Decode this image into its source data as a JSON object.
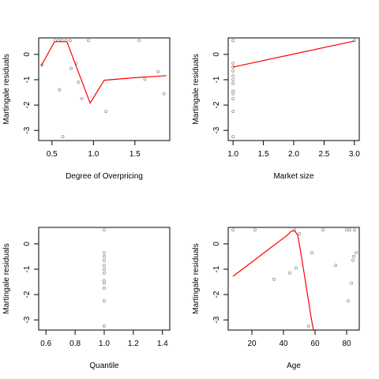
{
  "colors": {
    "points": "#999999",
    "curve": "#ff0000",
    "frame": "#000000"
  },
  "chart_data": [
    {
      "type": "scatter",
      "title": "",
      "xlabel": "Degree of Overpricing",
      "ylabel": "Martingale residuals",
      "xlim": [
        0.34,
        1.92
      ],
      "ylim": [
        -3.4,
        0.65
      ],
      "xticks": [
        0.5,
        1.0,
        1.5
      ],
      "xtick_labels": [
        "0.5",
        "1.0",
        "1.5"
      ],
      "yticks": [
        0,
        -1,
        -2,
        -3
      ],
      "ytick_labels": [
        "0",
        "-1",
        "-2",
        "-3"
      ],
      "points": [
        [
          0.38,
          -0.42
        ],
        [
          0.54,
          0.55
        ],
        [
          0.58,
          0.55
        ],
        [
          0.62,
          0.55
        ],
        [
          0.67,
          0.55
        ],
        [
          0.72,
          0.55
        ],
        [
          0.59,
          -1.4
        ],
        [
          0.63,
          -3.25
        ],
        [
          0.73,
          -0.55
        ],
        [
          0.79,
          -0.35
        ],
        [
          0.82,
          -1.1
        ],
        [
          0.86,
          -1.75
        ],
        [
          0.94,
          0.55
        ],
        [
          1.15,
          -2.25
        ],
        [
          1.55,
          0.55
        ],
        [
          1.62,
          -0.98
        ],
        [
          1.78,
          -0.68
        ],
        [
          1.85,
          -1.55
        ]
      ],
      "line": [
        [
          0.37,
          -0.45
        ],
        [
          0.53,
          0.5
        ],
        [
          0.68,
          0.5
        ],
        [
          0.96,
          -1.92
        ],
        [
          1.13,
          -1.02
        ],
        [
          1.5,
          -0.92
        ],
        [
          1.88,
          -0.84
        ]
      ],
      "grid": false,
      "legend": "none"
    },
    {
      "type": "scatter",
      "title": "",
      "xlabel": "Market size",
      "ylabel": "Martingale residuals",
      "xlim": [
        0.92,
        3.08
      ],
      "ylim": [
        -3.4,
        0.65
      ],
      "xticks": [
        1.0,
        1.5,
        2.0,
        2.5,
        3.0
      ],
      "xtick_labels": [
        "1.0",
        "1.5",
        "2.0",
        "2.5",
        "3.0"
      ],
      "yticks": [
        0,
        -1,
        -2,
        -3
      ],
      "ytick_labels": [
        "0",
        "-1",
        "-2",
        "-3"
      ],
      "points": [
        [
          1.0,
          0.55
        ],
        [
          1.0,
          -0.35
        ],
        [
          1.0,
          -0.5
        ],
        [
          1.0,
          -0.65
        ],
        [
          1.0,
          -0.85
        ],
        [
          1.0,
          -1.0
        ],
        [
          1.0,
          -1.15
        ],
        [
          1.0,
          -1.45
        ],
        [
          1.0,
          -1.55
        ],
        [
          1.0,
          -1.75
        ],
        [
          1.0,
          -2.25
        ],
        [
          1.0,
          -3.25
        ],
        [
          3.0,
          0.55
        ]
      ],
      "line": [
        [
          1.0,
          -0.5
        ],
        [
          3.0,
          0.53
        ]
      ],
      "grid": false,
      "legend": "none"
    },
    {
      "type": "scatter",
      "title": "",
      "xlabel": "Quantile",
      "ylabel": "Martingale residuals",
      "xlim": [
        0.55,
        1.45
      ],
      "ylim": [
        -3.4,
        0.65
      ],
      "xticks": [
        0.6,
        0.8,
        1.0,
        1.2,
        1.4
      ],
      "xtick_labels": [
        "0.6",
        "0.8",
        "1.0",
        "1.2",
        "1.4"
      ],
      "yticks": [
        0,
        -1,
        -2,
        -3
      ],
      "ytick_labels": [
        "0",
        "-1",
        "-2",
        "-3"
      ],
      "points": [
        [
          1.0,
          0.55
        ],
        [
          1.0,
          -0.35
        ],
        [
          1.0,
          -0.5
        ],
        [
          1.0,
          -0.65
        ],
        [
          1.0,
          -0.85
        ],
        [
          1.0,
          -1.0
        ],
        [
          1.0,
          -1.15
        ],
        [
          1.0,
          -1.45
        ],
        [
          1.0,
          -1.55
        ],
        [
          1.0,
          -1.75
        ],
        [
          1.0,
          -2.25
        ],
        [
          1.0,
          -3.25
        ]
      ],
      "line": [],
      "grid": false,
      "legend": "none"
    },
    {
      "type": "scatter",
      "title": "",
      "xlabel": "Age",
      "ylabel": "Martingale residuals",
      "xlim": [
        5,
        88
      ],
      "ylim": [
        -3.4,
        0.65
      ],
      "xticks": [
        20,
        40,
        60,
        80
      ],
      "xtick_labels": [
        "20",
        "40",
        "60",
        "80"
      ],
      "yticks": [
        0,
        -1,
        -2,
        -3
      ],
      "ytick_labels": [
        "0",
        "-1",
        "-2",
        "-3"
      ],
      "points": [
        [
          8,
          0.55
        ],
        [
          22,
          0.55
        ],
        [
          34,
          -1.4
        ],
        [
          44,
          -1.15
        ],
        [
          47,
          0.55
        ],
        [
          48,
          -0.95
        ],
        [
          50,
          0.4
        ],
        [
          56,
          -3.25
        ],
        [
          58,
          -0.35
        ],
        [
          65,
          0.55
        ],
        [
          73,
          -0.85
        ],
        [
          80,
          0.55
        ],
        [
          81,
          -2.25
        ],
        [
          82,
          0.55
        ],
        [
          83,
          -1.55
        ],
        [
          84,
          -0.65
        ],
        [
          85,
          0.55
        ],
        [
          86,
          -0.35
        ],
        [
          84.5,
          -0.5
        ]
      ],
      "line": [
        [
          8,
          -1.28
        ],
        [
          33,
          -0.1
        ],
        [
          42,
          0.32
        ],
        [
          45,
          0.5
        ],
        [
          47,
          0.52
        ],
        [
          49,
          0.35
        ],
        [
          51,
          -0.35
        ],
        [
          55,
          -1.9
        ],
        [
          57.5,
          -2.9
        ],
        [
          59,
          -3.4
        ]
      ],
      "grid": false,
      "legend": "none"
    }
  ]
}
